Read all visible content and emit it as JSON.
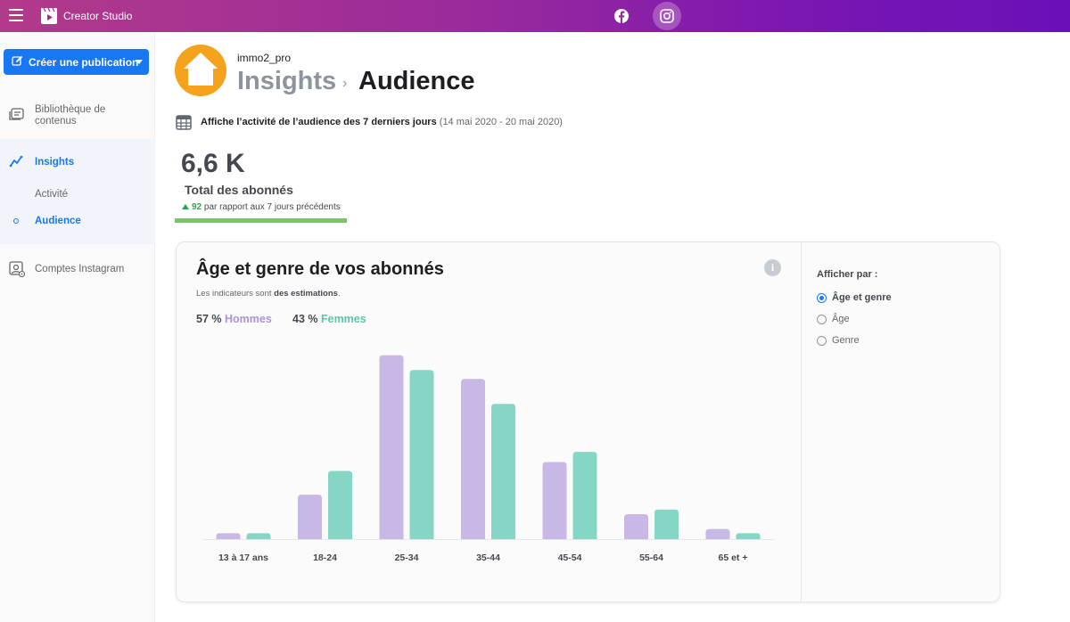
{
  "app": {
    "name": "Creator Studio"
  },
  "sidebar": {
    "create_label": "Créer une publication",
    "items": [
      {
        "label": "Bibliothèque de contenus"
      },
      {
        "label": "Insights"
      },
      {
        "label": "Activité"
      },
      {
        "label": "Audience"
      },
      {
        "label": "Comptes Instagram"
      }
    ]
  },
  "header": {
    "account": "immo2_pro",
    "breadcrumb": [
      "Insights",
      "Audience"
    ],
    "period_text": "Affiche l’activité de l’audience des 7 derniers jours",
    "period_range": "(14 mai 2020 - 20 mai 2020)"
  },
  "stat": {
    "value": "6,6 K",
    "label": "Total des abonnés",
    "delta": "92",
    "delta_text": "par rapport aux 7 jours précédents"
  },
  "card": {
    "title": "Âge et genre de vos abonnés",
    "subtitle_prefix": "Les indicateurs sont ",
    "subtitle_bold": "des estimations",
    "subtitle_suffix": ".",
    "legend": [
      {
        "pct": "57 %",
        "name": "Hommes"
      },
      {
        "pct": "43 %",
        "name": "Femmes"
      }
    ],
    "filter": {
      "title": "Afficher par :",
      "options": [
        "Âge et genre",
        "Âge",
        "Genre"
      ],
      "selected": "Âge et genre"
    }
  },
  "colors": {
    "men": "#c8b8e6",
    "women": "#85d6c4",
    "brand": "#1877f2"
  },
  "chart_data": {
    "type": "bar",
    "categories": [
      "13 à 17 ans",
      "18-24",
      "25-34",
      "35-44",
      "45-54",
      "55-64",
      "65 et +"
    ],
    "series": [
      {
        "name": "Hommes",
        "values": [
          1.0,
          7.5,
          31.0,
          27.0,
          13.0,
          4.2,
          1.7
        ]
      },
      {
        "name": "Femmes",
        "values": [
          1.0,
          11.5,
          28.5,
          22.8,
          14.7,
          5.0,
          1.0
        ]
      }
    ],
    "ylim": [
      0,
      32
    ]
  }
}
